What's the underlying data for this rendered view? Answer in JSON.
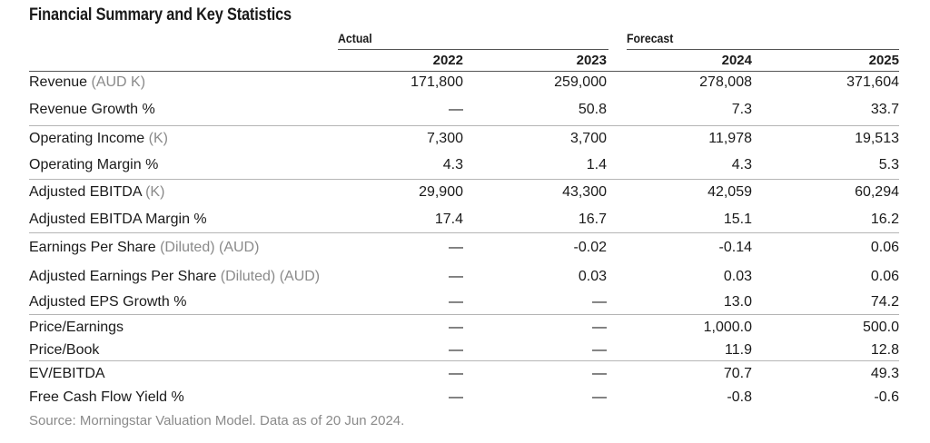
{
  "title": "Financial Summary and Key Statistics",
  "groups": {
    "actual": "Actual",
    "forecast": "Forecast"
  },
  "years": [
    "2022",
    "2023",
    "2024",
    "2025"
  ],
  "rows": [
    {
      "label": "Revenue",
      "dim": " (AUD K)",
      "values": [
        "171,800",
        "259,000",
        "278,008",
        "371,604"
      ]
    },
    {
      "label": "Revenue Growth %",
      "dim": "",
      "values": [
        "—",
        "50.8",
        "7.3",
        "33.7"
      ]
    },
    {
      "label": "Operating Income",
      "dim": " (K)",
      "values": [
        "7,300",
        "3,700",
        "11,978",
        "19,513"
      ]
    },
    {
      "label": "Operating Margin %",
      "dim": "",
      "values": [
        "4.3",
        "1.4",
        "4.3",
        "5.3"
      ]
    },
    {
      "label": "Adjusted EBITDA",
      "dim": " (K)",
      "values": [
        "29,900",
        "43,300",
        "42,059",
        "60,294"
      ]
    },
    {
      "label": "Adjusted EBITDA Margin %",
      "dim": "",
      "values": [
        "17.4",
        "16.7",
        "15.1",
        "16.2"
      ]
    },
    {
      "label": "Earnings Per Share",
      "dim": " (Diluted) (AUD)",
      "values": [
        "—",
        "-0.02",
        "-0.14",
        "0.06"
      ]
    },
    {
      "label": "Adjusted Earnings Per Share",
      "dim": " (Diluted) (AUD)",
      "values": [
        "—",
        "0.03",
        "0.03",
        "0.06"
      ]
    },
    {
      "label": "Adjusted EPS Growth %",
      "dim": "",
      "values": [
        "—",
        "—",
        "13.0",
        "74.2"
      ]
    },
    {
      "label": "Price/Earnings",
      "dim": "",
      "values": [
        "—",
        "—",
        "1,000.0",
        "500.0"
      ]
    },
    {
      "label": "Price/Book",
      "dim": "",
      "values": [
        "—",
        "—",
        "11.9",
        "12.8"
      ]
    },
    {
      "label": "EV/EBITDA",
      "dim": "",
      "values": [
        "—",
        "—",
        "70.7",
        "49.3"
      ]
    },
    {
      "label": "Free Cash Flow Yield %",
      "dim": "",
      "values": [
        "—",
        "—",
        "-0.8",
        "-0.6"
      ]
    }
  ],
  "source": "Source: Morningstar Valuation Model. Data as of 20 Jun 2024."
}
